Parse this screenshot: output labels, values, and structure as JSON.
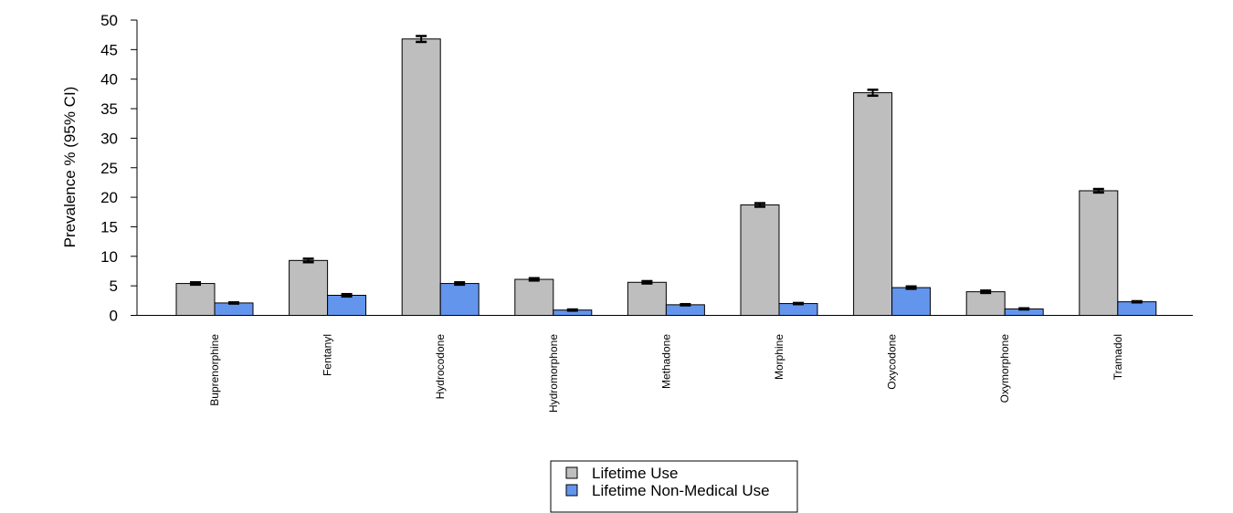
{
  "chart_data": {
    "type": "bar",
    "ylabel": "Prevalence % (95% CI)",
    "xlabel": "",
    "ylim": [
      0,
      50
    ],
    "yticks": [
      0,
      5,
      10,
      15,
      20,
      25,
      30,
      35,
      40,
      45,
      50
    ],
    "categories": [
      "Buprenorphine",
      "Fentanyl",
      "Hydrocodone",
      "Hydromorphone",
      "Methadone",
      "Morphine",
      "Oxycodone",
      "Oxymorphone",
      "Tramadol"
    ],
    "series": [
      {
        "name": "Lifetime Use",
        "color": "#bebebe",
        "values": [
          5.4,
          9.3,
          46.8,
          6.1,
          5.6,
          18.7,
          37.7,
          4.0,
          21.1
        ],
        "ci_low": [
          5.2,
          9.0,
          46.3,
          5.9,
          5.4,
          18.4,
          37.2,
          3.8,
          20.8
        ],
        "ci_high": [
          5.6,
          9.6,
          47.3,
          6.3,
          5.8,
          19.0,
          38.2,
          4.2,
          21.4
        ]
      },
      {
        "name": "Lifetime Non-Medical Use",
        "color": "#6495ed",
        "values": [
          2.1,
          3.4,
          5.4,
          0.9,
          1.8,
          2.0,
          4.7,
          1.1,
          2.3
        ],
        "ci_low": [
          2.0,
          3.2,
          5.2,
          0.8,
          1.7,
          1.9,
          4.5,
          1.0,
          2.2
        ],
        "ci_high": [
          2.2,
          3.6,
          5.6,
          1.0,
          1.9,
          2.1,
          4.9,
          1.2,
          2.4
        ]
      }
    ],
    "legend": "bottom-center",
    "grid": false
  }
}
